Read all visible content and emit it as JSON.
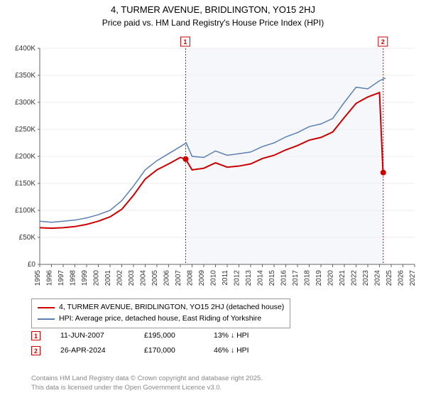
{
  "title": "4, TURMER AVENUE, BRIDLINGTON, YO15 2HJ",
  "subtitle": "Price paid vs. HM Land Registry's House Price Index (HPI)",
  "chart": {
    "type": "line",
    "background_color": "#ffffff",
    "plot_background_color": "#ffffff",
    "band_color": "#f5f7fb",
    "grid_color": "#eeeeee",
    "axis_color": "#666666",
    "tick_fontsize": 10,
    "x": {
      "min": 1995,
      "max": 2027,
      "tick_step": 1,
      "labels": [
        "1995",
        "1996",
        "1997",
        "1998",
        "1999",
        "2000",
        "2001",
        "2002",
        "2003",
        "2004",
        "2005",
        "2006",
        "2007",
        "2008",
        "2009",
        "2010",
        "2011",
        "2012",
        "2013",
        "2014",
        "2015",
        "2016",
        "2017",
        "2018",
        "2019",
        "2020",
        "2021",
        "2022",
        "2023",
        "2024",
        "2025",
        "2026",
        "2027"
      ]
    },
    "y": {
      "min": 0,
      "max": 400000,
      "tick_step": 50000,
      "labels": [
        "£0",
        "£50K",
        "£100K",
        "£150K",
        "£200K",
        "£250K",
        "£300K",
        "£350K",
        "£400K"
      ],
      "currency_prefix": "£"
    },
    "series": [
      {
        "name": "4, TURMER AVENUE, BRIDLINGTON, YO15 2HJ (detached house)",
        "color": "#cc0000",
        "line_width": 2,
        "points": [
          [
            1995,
            68000
          ],
          [
            1996,
            67000
          ],
          [
            1997,
            68000
          ],
          [
            1998,
            70000
          ],
          [
            1999,
            74000
          ],
          [
            2000,
            80000
          ],
          [
            2001,
            88000
          ],
          [
            2002,
            102000
          ],
          [
            2003,
            128000
          ],
          [
            2004,
            158000
          ],
          [
            2005,
            175000
          ],
          [
            2006,
            186000
          ],
          [
            2007,
            198000
          ],
          [
            2007.45,
            195000
          ],
          [
            2008,
            175000
          ],
          [
            2009,
            178000
          ],
          [
            2010,
            188000
          ],
          [
            2011,
            180000
          ],
          [
            2012,
            182000
          ],
          [
            2013,
            186000
          ],
          [
            2014,
            196000
          ],
          [
            2015,
            202000
          ],
          [
            2016,
            212000
          ],
          [
            2017,
            220000
          ],
          [
            2018,
            230000
          ],
          [
            2019,
            235000
          ],
          [
            2020,
            245000
          ],
          [
            2021,
            272000
          ],
          [
            2022,
            298000
          ],
          [
            2023,
            310000
          ],
          [
            2024,
            318000
          ],
          [
            2024.3,
            170000
          ]
        ]
      },
      {
        "name": "HPI: Average price, detached house, East Riding of Yorkshire",
        "color": "#5b7fb5",
        "line_width": 1.5,
        "points": [
          [
            1995,
            80000
          ],
          [
            1996,
            78000
          ],
          [
            1997,
            80000
          ],
          [
            1998,
            82000
          ],
          [
            1999,
            86000
          ],
          [
            2000,
            92000
          ],
          [
            2001,
            100000
          ],
          [
            2002,
            118000
          ],
          [
            2003,
            145000
          ],
          [
            2004,
            175000
          ],
          [
            2005,
            192000
          ],
          [
            2006,
            205000
          ],
          [
            2007,
            218000
          ],
          [
            2007.5,
            225000
          ],
          [
            2008,
            200000
          ],
          [
            2009,
            198000
          ],
          [
            2010,
            210000
          ],
          [
            2011,
            202000
          ],
          [
            2012,
            205000
          ],
          [
            2013,
            208000
          ],
          [
            2014,
            218000
          ],
          [
            2015,
            225000
          ],
          [
            2016,
            236000
          ],
          [
            2017,
            244000
          ],
          [
            2018,
            255000
          ],
          [
            2019,
            260000
          ],
          [
            2020,
            270000
          ],
          [
            2021,
            300000
          ],
          [
            2022,
            328000
          ],
          [
            2023,
            325000
          ],
          [
            2024,
            340000
          ],
          [
            2024.5,
            345000
          ]
        ]
      }
    ],
    "sale_markers": [
      {
        "n": "1",
        "year": 2007.45,
        "price": 195000,
        "color": "#cc0000"
      },
      {
        "n": "2",
        "year": 2024.32,
        "price": 170000,
        "color": "#cc0000"
      }
    ],
    "marker_box_border": "#cc0000",
    "marker_box_bg": "#ffffff",
    "marker_box_text": "#cc0000",
    "marker_line_color": "#cc0000",
    "marker_line_dash": "2,2",
    "sale_point_fill": "#cc0000"
  },
  "legend": {
    "items": [
      {
        "color": "#cc0000",
        "label": "4, TURMER AVENUE, BRIDLINGTON, YO15 2HJ (detached house)"
      },
      {
        "color": "#5b7fb5",
        "label": "HPI: Average price, detached house, East Riding of Yorkshire"
      }
    ]
  },
  "sales": [
    {
      "n": "1",
      "date": "11-JUN-2007",
      "price": "£195,000",
      "delta": "13% ↓ HPI",
      "color": "#cc0000"
    },
    {
      "n": "2",
      "date": "26-APR-2024",
      "price": "£170,000",
      "delta": "46% ↓ HPI",
      "color": "#cc0000"
    }
  ],
  "footer": {
    "line1": "Contains HM Land Registry data © Crown copyright and database right 2025.",
    "line2": "This data is licensed under the Open Government Licence v3.0."
  }
}
